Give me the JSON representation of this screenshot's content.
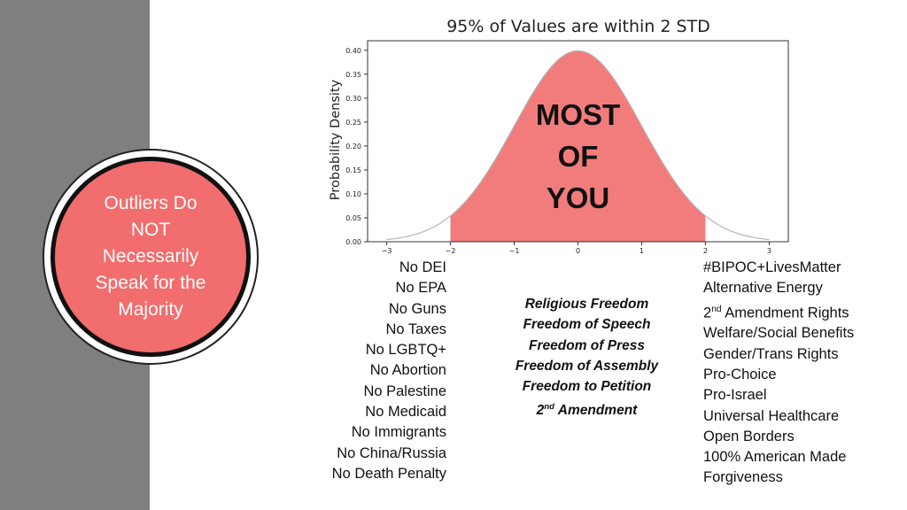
{
  "badge": {
    "text": "Outliers Do\nNOT\nNecessarily\nSpeak for the\nMajority"
  },
  "chart_data": {
    "type": "area",
    "title": "95% of Values are within 2 STD",
    "ylabel": "Probability Density",
    "xlabel": "",
    "xlim": [
      -3.3,
      3.3
    ],
    "ylim": [
      0,
      0.42
    ],
    "x_ticks": [
      -3,
      -2,
      -1,
      0,
      1,
      2,
      3
    ],
    "x_tick_labels": [
      "−3",
      "−2",
      "−1",
      "0",
      "1",
      "2",
      "3"
    ],
    "y_ticks": [
      0.0,
      0.05,
      0.1,
      0.15,
      0.2,
      0.25,
      0.3,
      0.35,
      0.4
    ],
    "y_tick_labels": [
      "0.00",
      "0.05",
      "0.10",
      "0.15",
      "0.20",
      "0.25",
      "0.30",
      "0.35",
      "0.40"
    ],
    "curve": "normal pdf, mean 0, std 1",
    "shaded_range": [
      -2,
      2
    ],
    "shade_color": "#f27c7c",
    "curve_color": "#b5b5b5",
    "annotation": [
      "MOST",
      "OF",
      "YOU"
    ]
  },
  "left_list": [
    "No DEI",
    "No EPA",
    "No Guns",
    "No Taxes",
    "No LGBTQ+",
    "No Abortion",
    "No Palestine",
    "No Medicaid",
    "No Immigrants",
    "No China/Russia",
    "No Death Penalty"
  ],
  "middle_list": [
    "Religious Freedom",
    "Freedom of Speech",
    "Freedom of Press",
    "Freedom of Assembly",
    "Freedom to Petition",
    "2nd Amendment"
  ],
  "right_list": [
    "#BIPOC+LivesMatter",
    "Alternative Energy",
    "2nd Amendment Rights",
    "Welfare/Social Benefits",
    "Gender/Trans Rights",
    "Pro-Choice",
    "Pro-Israel",
    "Universal Healthcare",
    "Open Borders",
    "100% American Made",
    "Forgiveness"
  ]
}
